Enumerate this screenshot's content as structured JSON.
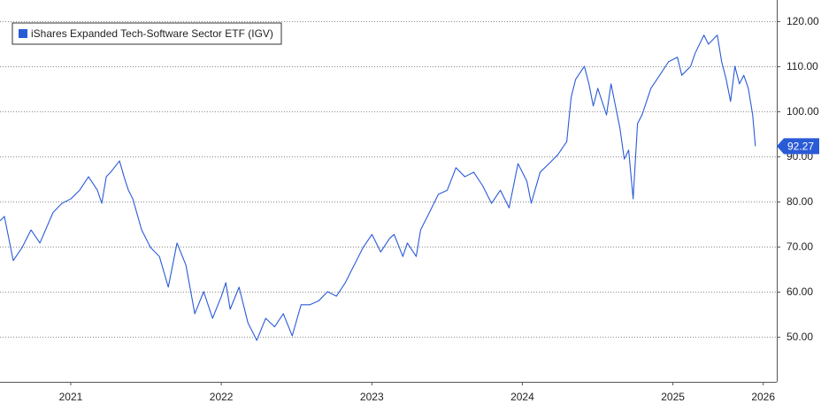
{
  "chart_data": {
    "type": "line",
    "series": [
      {
        "name": "iShares Expanded Tech-Software Sector ETF (IGV)",
        "color": "#2a5bd7",
        "values": [
          75.7,
          76.7,
          66.9,
          69.8,
          73.7,
          70.8,
          77.6,
          79.6,
          80.6,
          82.5,
          85.5,
          82.5,
          79.6,
          85.5,
          86.5,
          89.0,
          85.5,
          82.5,
          80.6,
          73.7,
          69.8,
          67.8,
          61.0,
          70.8,
          65.9,
          55.1,
          60.0,
          54.1,
          59.0,
          62.0,
          56.1,
          61.0,
          53.1,
          49.2,
          54.1,
          52.2,
          55.1,
          50.2,
          57.1,
          57.1,
          58.0,
          60.0,
          59.0,
          62.0,
          65.9,
          69.8,
          72.7,
          68.8,
          71.8,
          72.7,
          67.8,
          70.8,
          67.8,
          73.7,
          77.6,
          81.6,
          82.5,
          87.5,
          85.5,
          86.5,
          83.5,
          79.6,
          82.5,
          78.6,
          88.4,
          84.5,
          79.6,
          86.5,
          88.4,
          90.4,
          93.3,
          103.1,
          107.1,
          110.0,
          106.1,
          101.2,
          105.1,
          99.2,
          106.1,
          96.3,
          89.4,
          91.4,
          80.6,
          97.3,
          99.2,
          105.1,
          108.0,
          111.0,
          112.0,
          108.0,
          110.0,
          112.9,
          116.9,
          114.9,
          116.9,
          111.0,
          107.1,
          102.2,
          110.0,
          106.1,
          108.0,
          105.1,
          99.2,
          92.27
        ]
      }
    ],
    "x": [
      2021.03,
      2021.059,
      2021.118,
      2021.177,
      2021.236,
      2021.295,
      2021.383,
      2021.442,
      2021.501,
      2021.559,
      2021.618,
      2021.677,
      2021.706,
      2021.736,
      2021.765,
      2021.824,
      2021.854,
      2021.883,
      2021.912,
      2021.971,
      2022.03,
      2022.089,
      2022.148,
      2022.206,
      2022.265,
      2022.324,
      2022.383,
      2022.442,
      2022.501,
      2022.53,
      2022.559,
      2022.618,
      2022.677,
      2022.736,
      2022.795,
      2022.854,
      2022.912,
      2022.971,
      2023.03,
      2023.089,
      2023.148,
      2023.206,
      2023.265,
      2023.324,
      2023.383,
      2023.442,
      2023.501,
      2023.559,
      2023.618,
      2023.648,
      2023.706,
      2023.736,
      2023.795,
      2023.824,
      2023.883,
      2023.942,
      2024.001,
      2024.059,
      2024.118,
      2024.177,
      2024.236,
      2024.295,
      2024.354,
      2024.412,
      2024.471,
      2024.53,
      2024.559,
      2024.618,
      2024.677,
      2024.736,
      2024.795,
      2024.824,
      2024.854,
      2024.912,
      2024.942,
      2024.971,
      2025.001,
      2025.059,
      2025.089,
      2025.148,
      2025.177,
      2025.206,
      2025.236,
      2025.265,
      2025.295,
      2025.354,
      2025.412,
      2025.471,
      2025.53,
      2025.559,
      2025.618,
      2025.648,
      2025.706,
      2025.736,
      2025.795,
      2025.824,
      2025.854,
      2025.883,
      2025.912,
      2025.942,
      2025.971,
      2026.001,
      2026.03,
      2026.048
    ],
    "xlim": [
      2021.03,
      2026.19
    ],
    "xticks": [
      {
        "value": 2021.5,
        "label": "2021"
      },
      {
        "value": 2022.5,
        "label": "2022"
      },
      {
        "value": 2023.5,
        "label": "2023"
      },
      {
        "value": 2024.5,
        "label": "2024"
      },
      {
        "value": 2025.5,
        "label": "2025"
      },
      {
        "value": 2026.1,
        "label": "2026"
      }
    ],
    "ylim": [
      40,
      124.7
    ],
    "yticks": [
      {
        "value": 50,
        "label": "50.00"
      },
      {
        "value": 60,
        "label": "60.00"
      },
      {
        "value": 70,
        "label": "70.00"
      },
      {
        "value": 80,
        "label": "80.00"
      },
      {
        "value": 90,
        "label": "90.00"
      },
      {
        "value": 100,
        "label": "100.00"
      },
      {
        "value": 110,
        "label": "110.00"
      },
      {
        "value": 120,
        "label": "120.00"
      }
    ],
    "grid": true,
    "legend": "top-left"
  }
}
